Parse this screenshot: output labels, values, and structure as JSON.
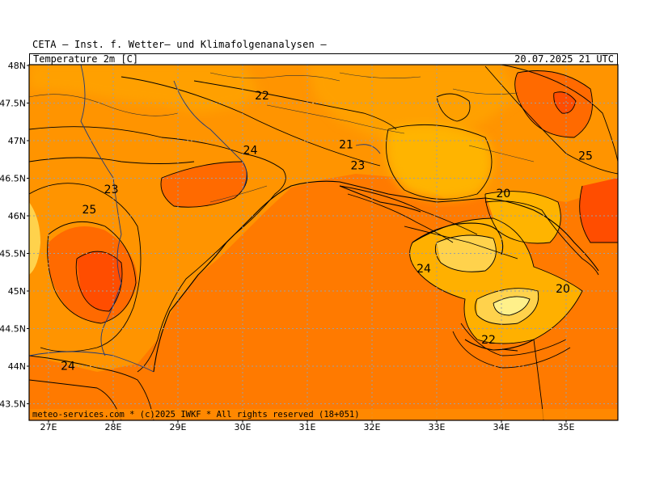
{
  "header": {
    "title": "CETA – Inst. f. Wetter– und Klimafolgenanalysen –",
    "parameter": "Temperature 2m [C]",
    "valid_time": "20.07.2025 21 UTC"
  },
  "map": {
    "lat_labels": [
      {
        "label": "48N",
        "lat": 48.0
      },
      {
        "label": "47.5N",
        "lat": 47.5
      },
      {
        "label": "47N",
        "lat": 47.0
      },
      {
        "label": "46.5N",
        "lat": 46.5
      },
      {
        "label": "46N",
        "lat": 46.0
      },
      {
        "label": "45.5N",
        "lat": 45.5
      },
      {
        "label": "45N",
        "lat": 45.0
      },
      {
        "label": "44.5N",
        "lat": 44.5
      },
      {
        "label": "44N",
        "lat": 44.0
      },
      {
        "label": "43.5N",
        "lat": 43.5
      }
    ],
    "lon_labels": [
      {
        "label": "27E",
        "lon": 27
      },
      {
        "label": "28E",
        "lon": 28
      },
      {
        "label": "29E",
        "lon": 29
      },
      {
        "label": "30E",
        "lon": 30
      },
      {
        "label": "31E",
        "lon": 31
      },
      {
        "label": "32E",
        "lon": 32
      },
      {
        "label": "33E",
        "lon": 33
      },
      {
        "label": "34E",
        "lon": 34
      },
      {
        "label": "35E",
        "lon": 35
      }
    ],
    "contour_labels": [
      {
        "text": "22",
        "lon": 30.3,
        "lat": 47.55
      },
      {
        "text": "24",
        "lon": 30.12,
        "lat": 46.82
      },
      {
        "text": "21",
        "lon": 31.6,
        "lat": 46.9
      },
      {
        "text": "23",
        "lon": 31.78,
        "lat": 46.62
      },
      {
        "text": "23",
        "lon": 27.97,
        "lat": 46.3
      },
      {
        "text": "25",
        "lon": 27.63,
        "lat": 46.03
      },
      {
        "text": "20",
        "lon": 34.03,
        "lat": 46.25
      },
      {
        "text": "25",
        "lon": 35.3,
        "lat": 46.75
      },
      {
        "text": "24",
        "lon": 32.8,
        "lat": 45.25
      },
      {
        "text": "20",
        "lon": 34.95,
        "lat": 44.98
      },
      {
        "text": "22",
        "lon": 33.8,
        "lat": 44.3
      },
      {
        "text": "24",
        "lon": 27.3,
        "lat": 43.95
      }
    ],
    "colors": {
      "warm_orange": "#ff8c00",
      "hot_orange": "#ff6a00",
      "light_orange": "#ffa500",
      "yellow_orange": "#ffb400",
      "pale_yellow": "#ffd24c",
      "red_orange": "#ff4d00"
    }
  },
  "footer": {
    "credit": "meteo-services.com * (c)2025 IWKF * All rights reserved (18+051)"
  }
}
